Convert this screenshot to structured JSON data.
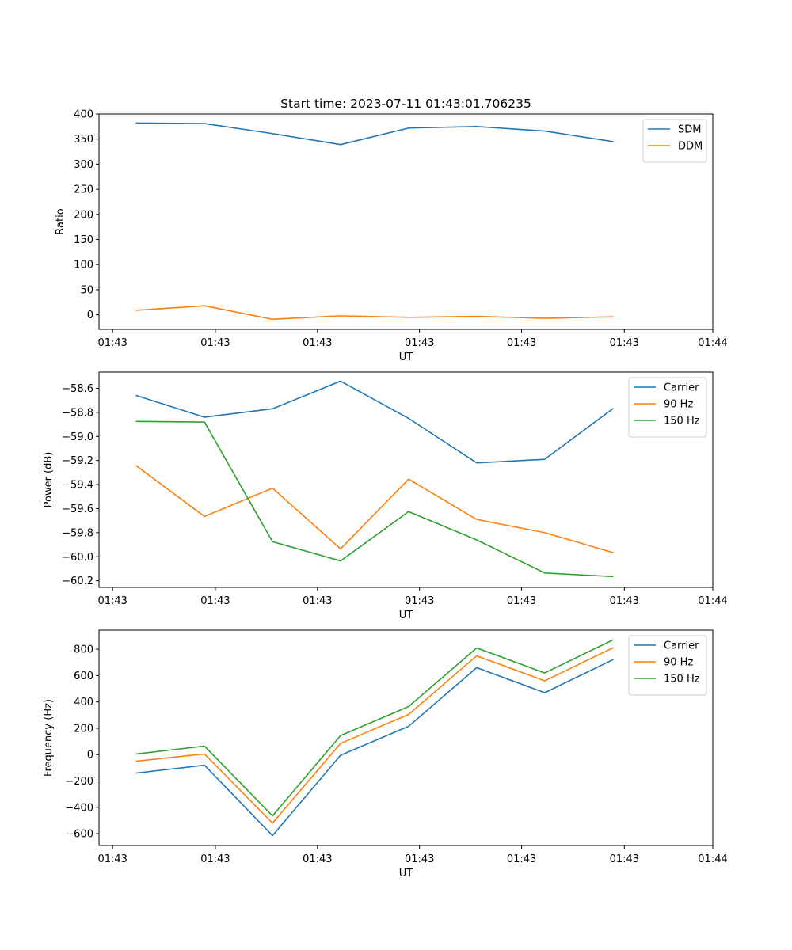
{
  "figure_title": "Start time: 2023-07-11 01:43:01.706235",
  "colors": {
    "blue": "#1f77b4",
    "orange": "#ff7f0e",
    "green": "#2ca02c"
  },
  "chart_data": [
    {
      "type": "line",
      "title": "Start time: 2023-07-11 01:43:01.706235",
      "xlabel": "UT",
      "ylabel": "Ratio",
      "x": [
        1,
        2,
        3,
        4,
        5,
        6,
        7,
        8
      ],
      "xlim": [
        0.45,
        9.47
      ],
      "x_ticks": [
        0.65,
        2.16,
        3.66,
        5.16,
        6.66,
        8.17,
        9.47
      ],
      "x_tick_labels": [
        "01:43",
        "01:43",
        "01:43",
        "01:43",
        "01:43",
        "01:43",
        "01:44"
      ],
      "ylim": [
        -29,
        400
      ],
      "y_ticks": [
        0,
        50,
        100,
        150,
        200,
        250,
        300,
        350,
        400
      ],
      "y_tick_labels": [
        "0",
        "50",
        "100",
        "150",
        "200",
        "250",
        "300",
        "350",
        "400"
      ],
      "legend_position": "top-right",
      "series": [
        {
          "name": "SDM",
          "color": "#1f77b4",
          "values": [
            382,
            381,
            361,
            339,
            372,
            375,
            366,
            345
          ]
        },
        {
          "name": "DDM",
          "color": "#ff7f0e",
          "values": [
            9,
            18,
            -9,
            -2,
            -5,
            -3,
            -7,
            -4
          ]
        }
      ]
    },
    {
      "type": "line",
      "title": "",
      "xlabel": "UT",
      "ylabel": "Power (dB)",
      "x": [
        1,
        2,
        3,
        4,
        5,
        6,
        7,
        8
      ],
      "xlim": [
        0.45,
        9.47
      ],
      "x_ticks": [
        0.65,
        2.16,
        3.66,
        5.16,
        6.66,
        8.17,
        9.47
      ],
      "x_tick_labels": [
        "01:43",
        "01:43",
        "01:43",
        "01:43",
        "01:43",
        "01:43",
        "01:44"
      ],
      "ylim": [
        -60.255,
        -58.465
      ],
      "y_ticks": [
        -60.2,
        -60.0,
        -59.8,
        -59.6,
        -59.4,
        -59.2,
        -59.0,
        -58.8,
        -58.6
      ],
      "y_tick_labels": [
        "−60.2",
        "−60.0",
        "−59.8",
        "−59.6",
        "−59.4",
        "−59.2",
        "−59.0",
        "−58.8",
        "−58.6"
      ],
      "legend_position": "top-right",
      "series": [
        {
          "name": "Carrier",
          "color": "#1f77b4",
          "values": [
            -58.66,
            -58.84,
            -58.77,
            -58.54,
            -58.85,
            -59.22,
            -59.19,
            -58.77
          ]
        },
        {
          "name": "90 Hz",
          "color": "#ff7f0e",
          "values": [
            -59.245,
            -59.665,
            -59.43,
            -59.935,
            -59.355,
            -59.69,
            -59.8,
            -59.965
          ]
        },
        {
          "name": "150 Hz",
          "color": "#2ca02c",
          "values": [
            -58.875,
            -58.88,
            -59.875,
            -60.035,
            -59.625,
            -59.86,
            -60.135,
            -60.165
          ]
        }
      ]
    },
    {
      "type": "line",
      "title": "",
      "xlabel": "UT",
      "ylabel": "Frequency (Hz)",
      "x": [
        1,
        2,
        3,
        4,
        5,
        6,
        7,
        8
      ],
      "xlim": [
        0.45,
        9.47
      ],
      "x_ticks": [
        0.65,
        2.16,
        3.66,
        5.16,
        6.66,
        8.17,
        9.47
      ],
      "x_tick_labels": [
        "01:43",
        "01:43",
        "01:43",
        "01:43",
        "01:43",
        "01:43",
        "01:44"
      ],
      "ylim": [
        -690,
        945
      ],
      "y_ticks": [
        -600,
        -400,
        -200,
        0,
        200,
        400,
        600,
        800
      ],
      "y_tick_labels": [
        "−600",
        "−400",
        "−200",
        "0",
        "200",
        "400",
        "600",
        "800"
      ],
      "legend_position": "top-right",
      "series": [
        {
          "name": "Carrier",
          "color": "#1f77b4",
          "values": [
            -140,
            -80,
            -615,
            -5,
            215,
            660,
            470,
            720
          ]
        },
        {
          "name": "90 Hz",
          "color": "#ff7f0e",
          "values": [
            -50,
            5,
            -520,
            85,
            305,
            750,
            560,
            810
          ]
        },
        {
          "name": "150 Hz",
          "color": "#2ca02c",
          "values": [
            5,
            65,
            -465,
            145,
            365,
            810,
            620,
            870
          ]
        }
      ]
    }
  ]
}
